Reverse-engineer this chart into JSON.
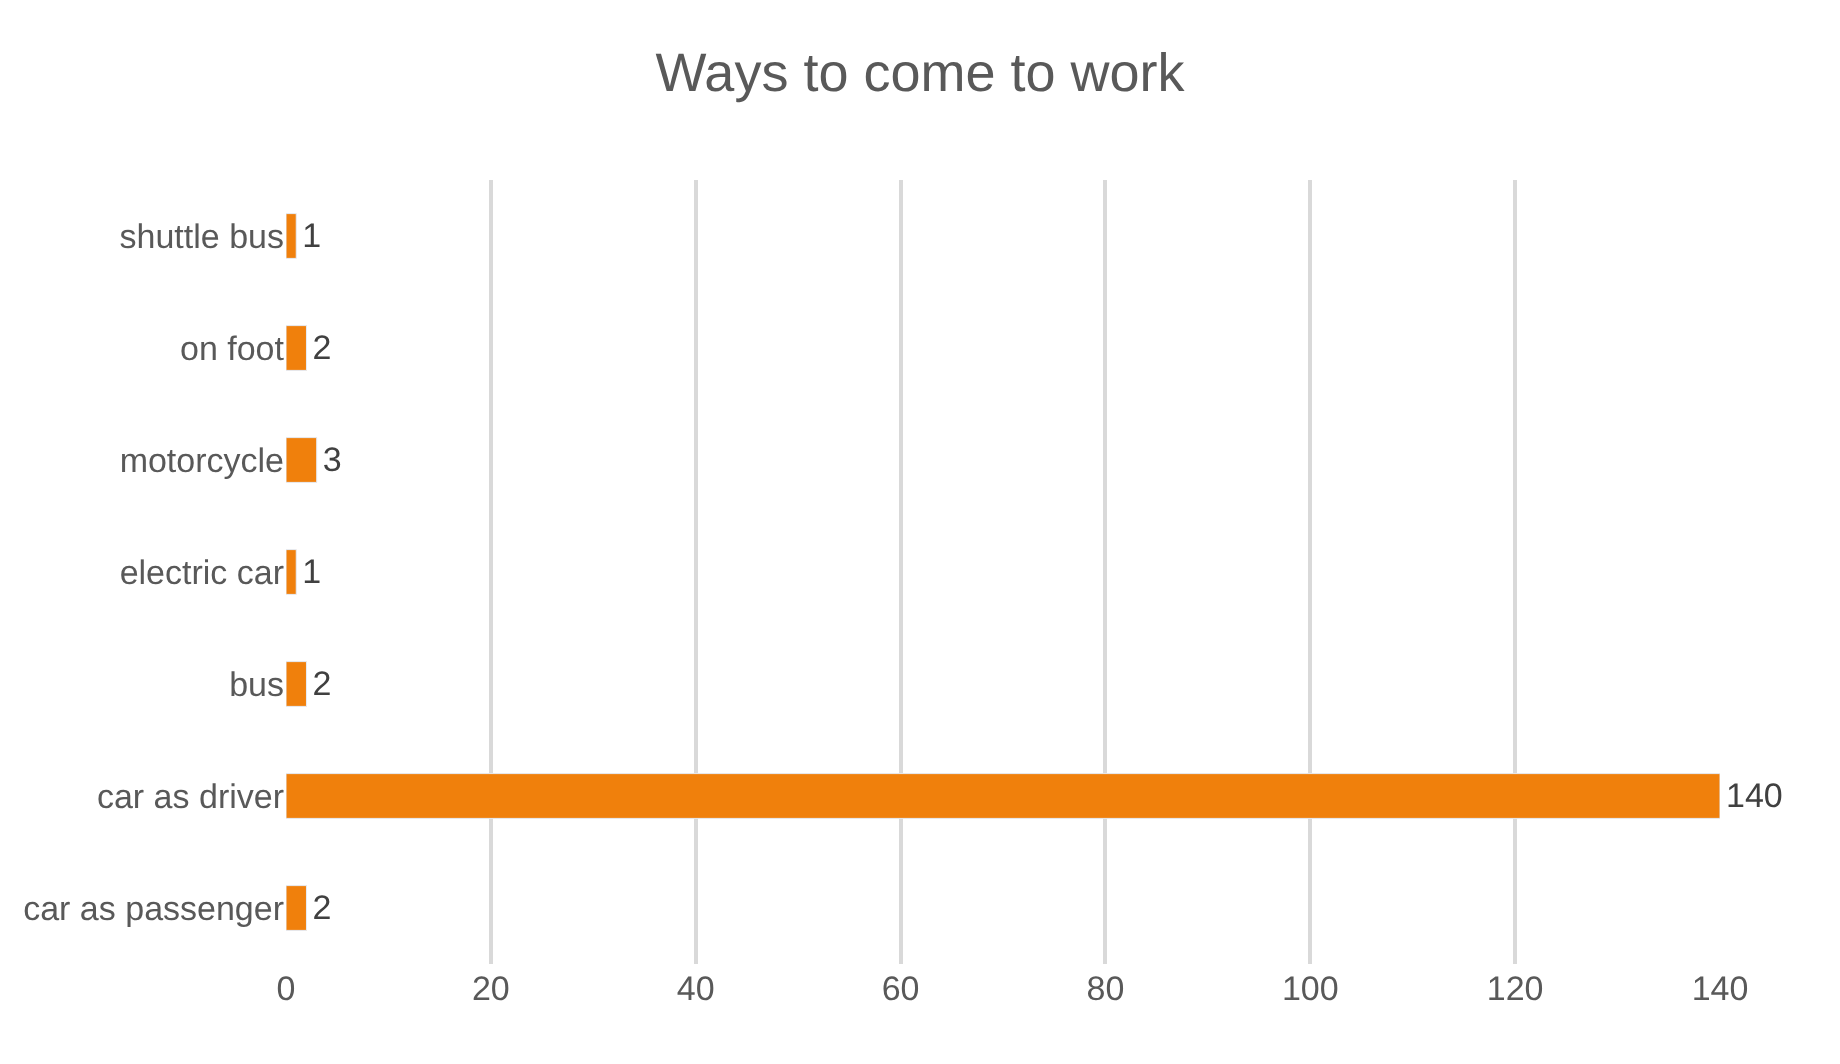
{
  "chart_data": {
    "type": "bar",
    "orientation": "horizontal",
    "title": "Ways to come to work",
    "categories": [
      "shuttle bus",
      "on foot",
      "motorcycle",
      "electric car",
      "bus",
      "car as driver",
      "car as passenger"
    ],
    "values": [
      1,
      2,
      3,
      1,
      2,
      140,
      2
    ],
    "color": "#f0800c",
    "xlim": [
      0,
      140
    ],
    "xticks": [
      0,
      20,
      40,
      60,
      80,
      100,
      120,
      140
    ],
    "grid": "x",
    "data_labels": true,
    "legend": false
  }
}
